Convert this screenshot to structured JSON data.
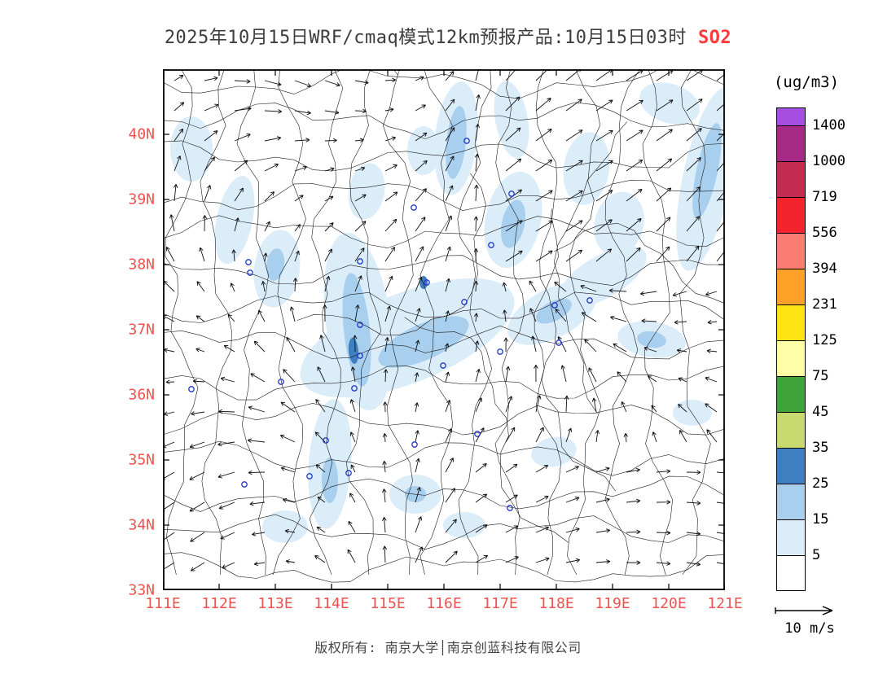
{
  "title": {
    "main": "2025年10月15日WRF/cmaq模式12km预报产品:10月15日03时",
    "species": "SO2"
  },
  "map": {
    "lat_labels": [
      "40N",
      "39N",
      "38N",
      "37N",
      "36N",
      "35N",
      "34N",
      "33N"
    ],
    "lon_labels": [
      "111E",
      "112E",
      "113E",
      "114E",
      "115E",
      "116E",
      "117E",
      "118E",
      "119E",
      "120E",
      "121E"
    ]
  },
  "colorbar": {
    "unit": "(ug/m3)",
    "tick_labels": [
      "1400",
      "1000",
      "719",
      "556",
      "394",
      "231",
      "125",
      "75",
      "45",
      "35",
      "25",
      "15",
      "5"
    ],
    "colors_top_to_bottom": [
      "#a44fdf",
      "#a62a85",
      "#c42b50",
      "#f5232e",
      "#fa7d72",
      "#ffa028",
      "#ffe414",
      "#ffffa8",
      "#3fa33c",
      "#c7d96f",
      "#3d7fc0",
      "#a8cfee",
      "#dcedfa",
      "#ffffff"
    ]
  },
  "wind_legend": {
    "label": "10 m/s"
  },
  "footer": {
    "copyright": "版权所有: 南京大学│南京创蓝科技有限公司"
  },
  "style": {
    "axis_label_color": "#f0524f",
    "species_color": "#fb3a3a",
    "boundary_color": "#1b1b1b",
    "city_marker_color": "#2038c8"
  }
}
